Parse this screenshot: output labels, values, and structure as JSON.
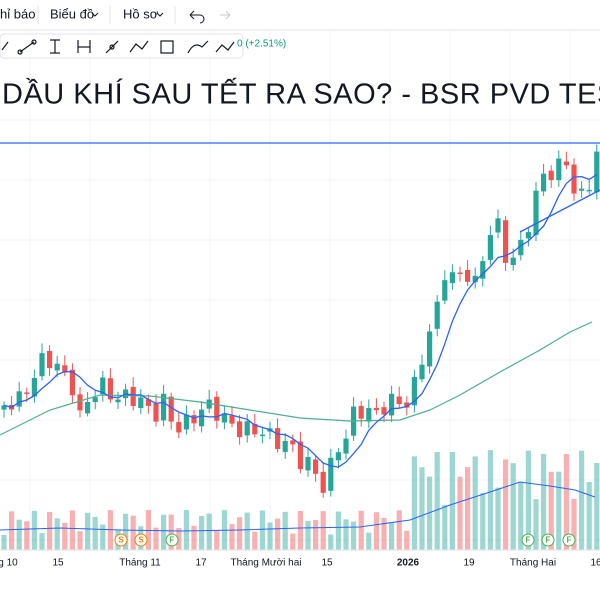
{
  "toolbar": {
    "items": [
      "hỉ báo",
      "Biểu đồ",
      "Hồ sơ"
    ]
  },
  "legend": {
    "change": "0 (+2.51%)"
  },
  "headline": "DẦU KHÍ SAU TẾT RA SAO? - BSR PVD TEST ĐỈ",
  "x_axis": {
    "labels": [
      "g 10",
      "15",
      "Tháng 11",
      "17",
      "Tháng Mười hai",
      "15",
      "2026",
      "19",
      "Tháng Hai",
      "16"
    ]
  },
  "markers": [
    "S",
    "S",
    "F",
    "F",
    "F",
    "F"
  ]
}
